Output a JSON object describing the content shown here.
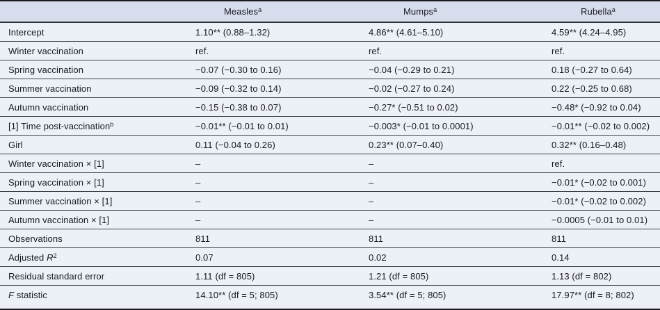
{
  "table": {
    "columns": [
      {
        "label": ""
      },
      {
        "label": "Measles",
        "sup": "a"
      },
      {
        "label": "Mumps",
        "sup": "a"
      },
      {
        "label": "Rubella",
        "sup": "a"
      }
    ],
    "rows": [
      {
        "label": "Intercept",
        "values": [
          "1.10** (0.88–1.32)",
          "4.86** (4.61–5.10)",
          "4.59** (4.24–4.95)"
        ]
      },
      {
        "label": "Winter vaccination",
        "values": [
          "ref.",
          "ref.",
          "ref."
        ]
      },
      {
        "label": "Spring vaccination",
        "values": [
          "−0.07 (−0.30 to 0.16)",
          "−0.04 (−0.29 to 0.21)",
          "0.18 (−0.27 to 0.64)"
        ]
      },
      {
        "label": "Summer vaccination",
        "values": [
          "−0.09 (−0.32 to 0.14)",
          "−0.02 (−0.27 to 0.24)",
          "0.22 (−0.25 to 0.68)"
        ]
      },
      {
        "label": "Autumn vaccination",
        "values": [
          "−0.15 (−0.38 to 0.07)",
          "−0.27* (−0.51 to 0.02)",
          "−0.48* (−0.92 to 0.04)"
        ]
      },
      {
        "label": "[1] Time post-vaccination",
        "label_sup": "b",
        "values": [
          "−0.01** (−0.01 to 0.01)",
          "−0.003* (−0.01 to 0.0001)",
          "−0.01** (−0.02 to 0.002)"
        ]
      },
      {
        "label": "Girl",
        "values": [
          "0.11 (−0.04 to 0.26)",
          "0.23** (0.07–0.40)",
          "0.32** (0.16–0.48)"
        ]
      },
      {
        "label": "Winter vaccination × [1]",
        "values": [
          "–",
          "–",
          "ref."
        ]
      },
      {
        "label": "Spring vaccination × [1]",
        "values": [
          "–",
          "–",
          "−0.01* (−0.02 to 0.001)"
        ]
      },
      {
        "label": "Summer vaccination × [1]",
        "values": [
          "–",
          "–",
          "−0.01* (−0.02 to 0.002)"
        ]
      },
      {
        "label": "Autumn vaccination × [1]",
        "values": [
          "–",
          "–",
          "−0.0005 (−0.01 to 0.01)"
        ]
      },
      {
        "label": "Observations",
        "values": [
          "811",
          "811",
          "811"
        ]
      },
      {
        "label": "Adjusted ",
        "label_italic": "R",
        "label_sup": "2",
        "values": [
          "0.07",
          "0.02",
          "0.14"
        ]
      },
      {
        "label": "Residual standard error",
        "values": [
          "1.11 (df = 805)",
          "1.21 (df = 805)",
          "1.13 (df = 802)"
        ]
      },
      {
        "label": "",
        "label_italic": "F",
        "label_rest": " statistic",
        "values": [
          "14.10** (df = 5; 805)",
          "3.54** (df = 5; 805)",
          "17.97** (df = 8; 802)"
        ]
      }
    ]
  }
}
